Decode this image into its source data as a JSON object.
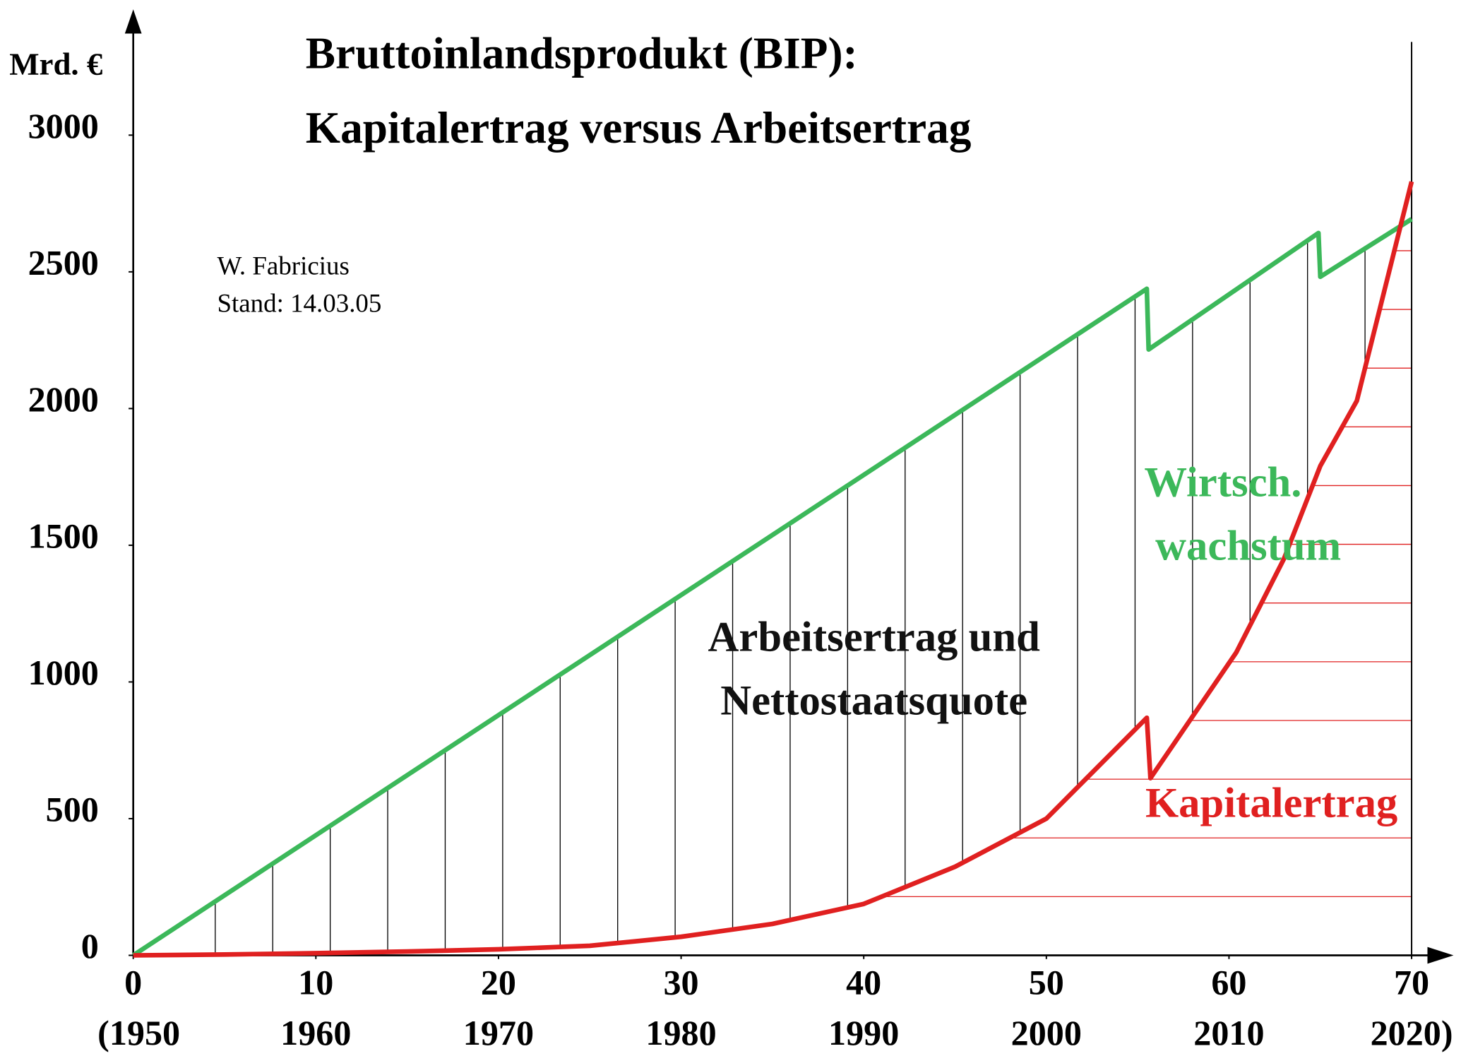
{
  "chart_data": {
    "type": "line",
    "title_lines": [
      "Bruttoinlandsprodukt (BIP):",
      "Kapitalertrag versus Arbeitsertrag"
    ],
    "y_label": "Mrd. €",
    "author": "W. Fabricius",
    "date_note": "Stand: 14.03.05",
    "annotation_lines": [
      "Arbeitsertrag und",
      "Nettostaatsquote"
    ],
    "xlim": [
      0,
      70
    ],
    "ylim": [
      0,
      3000
    ],
    "xticks": [
      0,
      10,
      20,
      30,
      40,
      50,
      60,
      70
    ],
    "xtick_sublabels": [
      "(1950",
      "1960",
      "1970",
      "1980",
      "1990",
      "2000",
      "2010",
      "2020)"
    ],
    "yticks": [
      0,
      500,
      1000,
      1500,
      2000,
      2500,
      3000
    ],
    "series": [
      {
        "label_lines": [
          "Wirtsch.",
          "wachstum"
        ],
        "color": "#3cb85a",
        "x": [
          0,
          55.5,
          55.6,
          64.9,
          65,
          70
        ],
        "values": [
          0,
          2438,
          2216,
          2642,
          2482,
          2693
        ]
      },
      {
        "name": "Kapitalertrag",
        "color": "#e02020",
        "x": [
          0,
          5,
          10,
          15,
          20,
          25,
          30,
          35,
          40,
          45,
          50,
          55.5,
          55.7,
          60.4,
          63,
          65,
          67,
          70
        ],
        "values": [
          0,
          3,
          8,
          14,
          22,
          35,
          68,
          115,
          188,
          324,
          500,
          869,
          648,
          1108,
          1449,
          1790,
          2028,
          2830
        ]
      }
    ]
  }
}
